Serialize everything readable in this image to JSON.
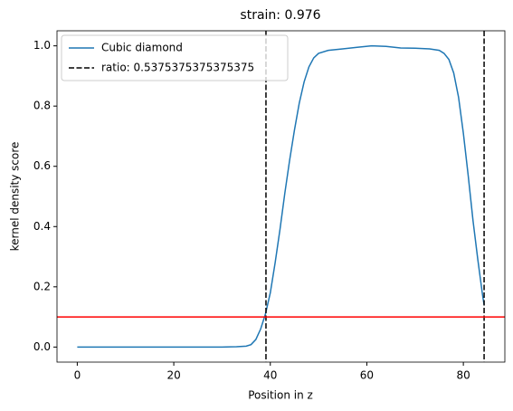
{
  "chart_data": {
    "type": "line",
    "title": "strain: 0.976",
    "x_label": "Position in z",
    "y_label": "kernel density score",
    "x": [
      0,
      5,
      10,
      15,
      20,
      25,
      30,
      33,
      35,
      36,
      37,
      38,
      39,
      40,
      41,
      42,
      43,
      44,
      45,
      46,
      47,
      48,
      49,
      50,
      52,
      55,
      58,
      61,
      64,
      67,
      70,
      73,
      75,
      76,
      77,
      78,
      79,
      80,
      81,
      82,
      83,
      84,
      84.3
    ],
    "series": [
      {
        "name": "Cubic diamond",
        "color": "#1f77b4",
        "values": [
          0,
          0,
          0,
          0,
          0,
          0,
          0,
          0.001,
          0.003,
          0.008,
          0.025,
          0.06,
          0.11,
          0.18,
          0.28,
          0.39,
          0.51,
          0.62,
          0.72,
          0.81,
          0.88,
          0.93,
          0.96,
          0.975,
          0.985,
          0.99,
          0.995,
          1.0,
          0.998,
          0.993,
          0.992,
          0.99,
          0.985,
          0.975,
          0.955,
          0.91,
          0.83,
          0.71,
          0.57,
          0.42,
          0.29,
          0.17,
          0.14
        ]
      }
    ],
    "vlines": {
      "name": "ratio: 0.5375375375375375",
      "color": "#000000",
      "x": [
        39.1,
        84.3
      ]
    },
    "hline": {
      "y": 0.1,
      "color": "#ff0000"
    },
    "xlim": [
      -4.2,
      88.6
    ],
    "ylim": [
      -0.05,
      1.05
    ],
    "xticks": [
      0,
      20,
      40,
      60,
      80
    ],
    "yticks": [
      {
        "value": 0,
        "label": "0.0"
      },
      {
        "value": 0.2,
        "label": "0.2"
      },
      {
        "value": 0.4,
        "label": "0.4"
      },
      {
        "value": 0.6,
        "label": "0.6"
      },
      {
        "value": 0.8,
        "label": "0.8"
      },
      {
        "value": 1,
        "label": "1.0"
      }
    ],
    "legend": "upper left"
  }
}
